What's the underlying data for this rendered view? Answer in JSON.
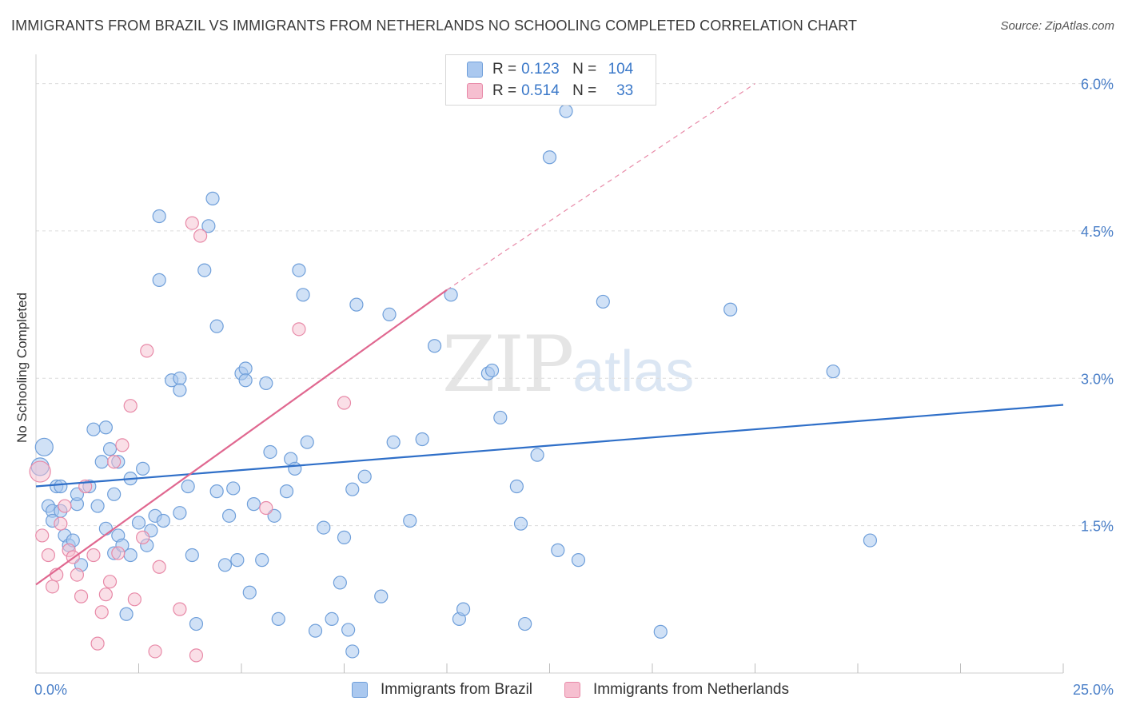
{
  "title": "IMMIGRANTS FROM BRAZIL VS IMMIGRANTS FROM NETHERLANDS NO SCHOOLING COMPLETED CORRELATION CHART",
  "source": "Source: ZipAtlas.com",
  "watermark": {
    "zip": "ZIP",
    "atlas": "atlas"
  },
  "colors": {
    "brazil_fill": "#aac8ef",
    "brazil_stroke": "#6f9fda",
    "brazil_line": "#2f6fc8",
    "neth_fill": "#f6bfd0",
    "neth_stroke": "#e88aa8",
    "neth_line": "#e06890",
    "axis_text": "#4a7fc8",
    "grid": "#dcdcdc"
  },
  "legend": {
    "rows": [
      {
        "r_label": "R =",
        "r_value": "0.123",
        "n_label": "N =",
        "n_value": "104"
      },
      {
        "r_label": "R =",
        "r_value": "0.514",
        "n_label": "N =",
        "n_value": "33"
      }
    ]
  },
  "bottom_legend": [
    "Immigrants from Brazil",
    "Immigrants from Netherlands"
  ],
  "chart_data": {
    "type": "scatter",
    "title": "IMMIGRANTS FROM BRAZIL VS IMMIGRANTS FROM NETHERLANDS NO SCHOOLING COMPLETED CORRELATION CHART",
    "xlabel": "",
    "ylabel": "No Schooling Completed",
    "xlim": [
      0,
      25
    ],
    "ylim": [
      0,
      6.2
    ],
    "x_tick_labels": [
      "0.0%",
      "25.0%"
    ],
    "y_ticks": [
      1.5,
      3.0,
      4.5,
      6.0
    ],
    "y_tick_labels": [
      "1.5%",
      "3.0%",
      "4.5%",
      "6.0%"
    ],
    "grid": true,
    "series": [
      {
        "name": "Immigrants from Brazil",
        "R": 0.123,
        "N": 104,
        "trend": {
          "x": [
            0,
            25
          ],
          "y": [
            1.9,
            2.73
          ]
        },
        "points": [
          [
            0.2,
            2.3
          ],
          [
            0.1,
            2.1
          ],
          [
            0.3,
            1.7
          ],
          [
            0.4,
            1.65
          ],
          [
            0.5,
            1.9
          ],
          [
            0.4,
            1.55
          ],
          [
            0.6,
            1.9
          ],
          [
            0.6,
            1.65
          ],
          [
            0.7,
            1.4
          ],
          [
            0.8,
            1.3
          ],
          [
            0.9,
            1.35
          ],
          [
            1.0,
            1.72
          ],
          [
            1.0,
            1.82
          ],
          [
            1.1,
            1.1
          ],
          [
            1.3,
            1.9
          ],
          [
            1.4,
            2.48
          ],
          [
            1.5,
            1.7
          ],
          [
            1.6,
            2.15
          ],
          [
            1.7,
            2.5
          ],
          [
            1.7,
            1.47
          ],
          [
            1.8,
            2.28
          ],
          [
            1.9,
            1.22
          ],
          [
            1.9,
            1.82
          ],
          [
            2.0,
            2.15
          ],
          [
            2.0,
            1.4
          ],
          [
            2.1,
            1.3
          ],
          [
            2.2,
            0.6
          ],
          [
            2.3,
            1.2
          ],
          [
            2.3,
            1.98
          ],
          [
            2.5,
            1.53
          ],
          [
            2.6,
            2.08
          ],
          [
            2.7,
            1.3
          ],
          [
            2.8,
            1.45
          ],
          [
            2.9,
            1.6
          ],
          [
            3.0,
            4.65
          ],
          [
            3.0,
            4.0
          ],
          [
            3.1,
            1.55
          ],
          [
            3.3,
            2.98
          ],
          [
            3.5,
            3.0
          ],
          [
            3.5,
            2.88
          ],
          [
            3.5,
            1.63
          ],
          [
            3.7,
            1.9
          ],
          [
            3.8,
            1.2
          ],
          [
            3.9,
            0.5
          ],
          [
            4.1,
            4.1
          ],
          [
            4.2,
            4.55
          ],
          [
            4.3,
            4.83
          ],
          [
            4.4,
            3.53
          ],
          [
            4.4,
            1.85
          ],
          [
            4.6,
            1.1
          ],
          [
            4.7,
            1.6
          ],
          [
            4.8,
            1.88
          ],
          [
            4.9,
            1.15
          ],
          [
            5.0,
            3.05
          ],
          [
            5.1,
            3.1
          ],
          [
            5.1,
            2.98
          ],
          [
            5.2,
            0.82
          ],
          [
            5.3,
            1.72
          ],
          [
            5.5,
            1.15
          ],
          [
            5.6,
            2.95
          ],
          [
            5.7,
            2.25
          ],
          [
            5.8,
            1.6
          ],
          [
            5.9,
            0.55
          ],
          [
            6.1,
            1.85
          ],
          [
            6.2,
            2.18
          ],
          [
            6.3,
            2.08
          ],
          [
            6.4,
            4.1
          ],
          [
            6.5,
            3.85
          ],
          [
            6.6,
            2.35
          ],
          [
            6.8,
            0.43
          ],
          [
            7.0,
            1.48
          ],
          [
            7.2,
            0.55
          ],
          [
            7.4,
            0.92
          ],
          [
            7.5,
            1.38
          ],
          [
            7.6,
            0.44
          ],
          [
            7.7,
            1.87
          ],
          [
            7.7,
            0.22
          ],
          [
            7.8,
            3.75
          ],
          [
            8.0,
            2.0
          ],
          [
            8.4,
            0.78
          ],
          [
            8.6,
            3.65
          ],
          [
            8.7,
            2.35
          ],
          [
            9.1,
            1.55
          ],
          [
            9.4,
            2.38
          ],
          [
            9.7,
            3.33
          ],
          [
            10.1,
            3.85
          ],
          [
            10.3,
            0.55
          ],
          [
            10.4,
            0.65
          ],
          [
            11.0,
            3.05
          ],
          [
            11.1,
            3.08
          ],
          [
            11.3,
            2.6
          ],
          [
            11.7,
            1.9
          ],
          [
            11.8,
            1.52
          ],
          [
            11.9,
            0.5
          ],
          [
            12.2,
            2.22
          ],
          [
            12.5,
            5.25
          ],
          [
            12.7,
            1.25
          ],
          [
            12.9,
            5.72
          ],
          [
            13.2,
            1.15
          ],
          [
            13.8,
            3.78
          ],
          [
            15.2,
            0.42
          ],
          [
            16.9,
            3.7
          ],
          [
            19.4,
            3.07
          ],
          [
            20.3,
            1.35
          ]
        ]
      },
      {
        "name": "Immigrants from Netherlands",
        "R": 0.514,
        "N": 33,
        "trend": {
          "x": [
            0,
            10
          ],
          "y": [
            0.9,
            3.9
          ]
        },
        "trend_dashed": {
          "x": [
            10,
            17.5
          ],
          "y": [
            3.9,
            6.0
          ]
        },
        "points": [
          [
            0.1,
            2.05
          ],
          [
            0.15,
            1.4
          ],
          [
            0.3,
            1.2
          ],
          [
            0.4,
            0.88
          ],
          [
            0.5,
            1.0
          ],
          [
            0.6,
            1.52
          ],
          [
            0.7,
            1.7
          ],
          [
            0.8,
            1.25
          ],
          [
            0.9,
            1.18
          ],
          [
            1.0,
            1.0
          ],
          [
            1.1,
            0.78
          ],
          [
            1.2,
            1.9
          ],
          [
            1.4,
            1.2
          ],
          [
            1.5,
            0.3
          ],
          [
            1.6,
            0.62
          ],
          [
            1.7,
            0.8
          ],
          [
            1.8,
            0.93
          ],
          [
            1.9,
            2.15
          ],
          [
            2.0,
            1.22
          ],
          [
            2.1,
            2.32
          ],
          [
            2.3,
            2.72
          ],
          [
            2.4,
            0.75
          ],
          [
            2.6,
            1.38
          ],
          [
            2.7,
            3.28
          ],
          [
            2.9,
            0.22
          ],
          [
            3.0,
            1.08
          ],
          [
            3.5,
            0.65
          ],
          [
            3.8,
            4.58
          ],
          [
            3.9,
            0.18
          ],
          [
            4.0,
            4.45
          ],
          [
            5.6,
            1.68
          ],
          [
            6.4,
            3.5
          ],
          [
            7.5,
            2.75
          ]
        ]
      }
    ]
  }
}
